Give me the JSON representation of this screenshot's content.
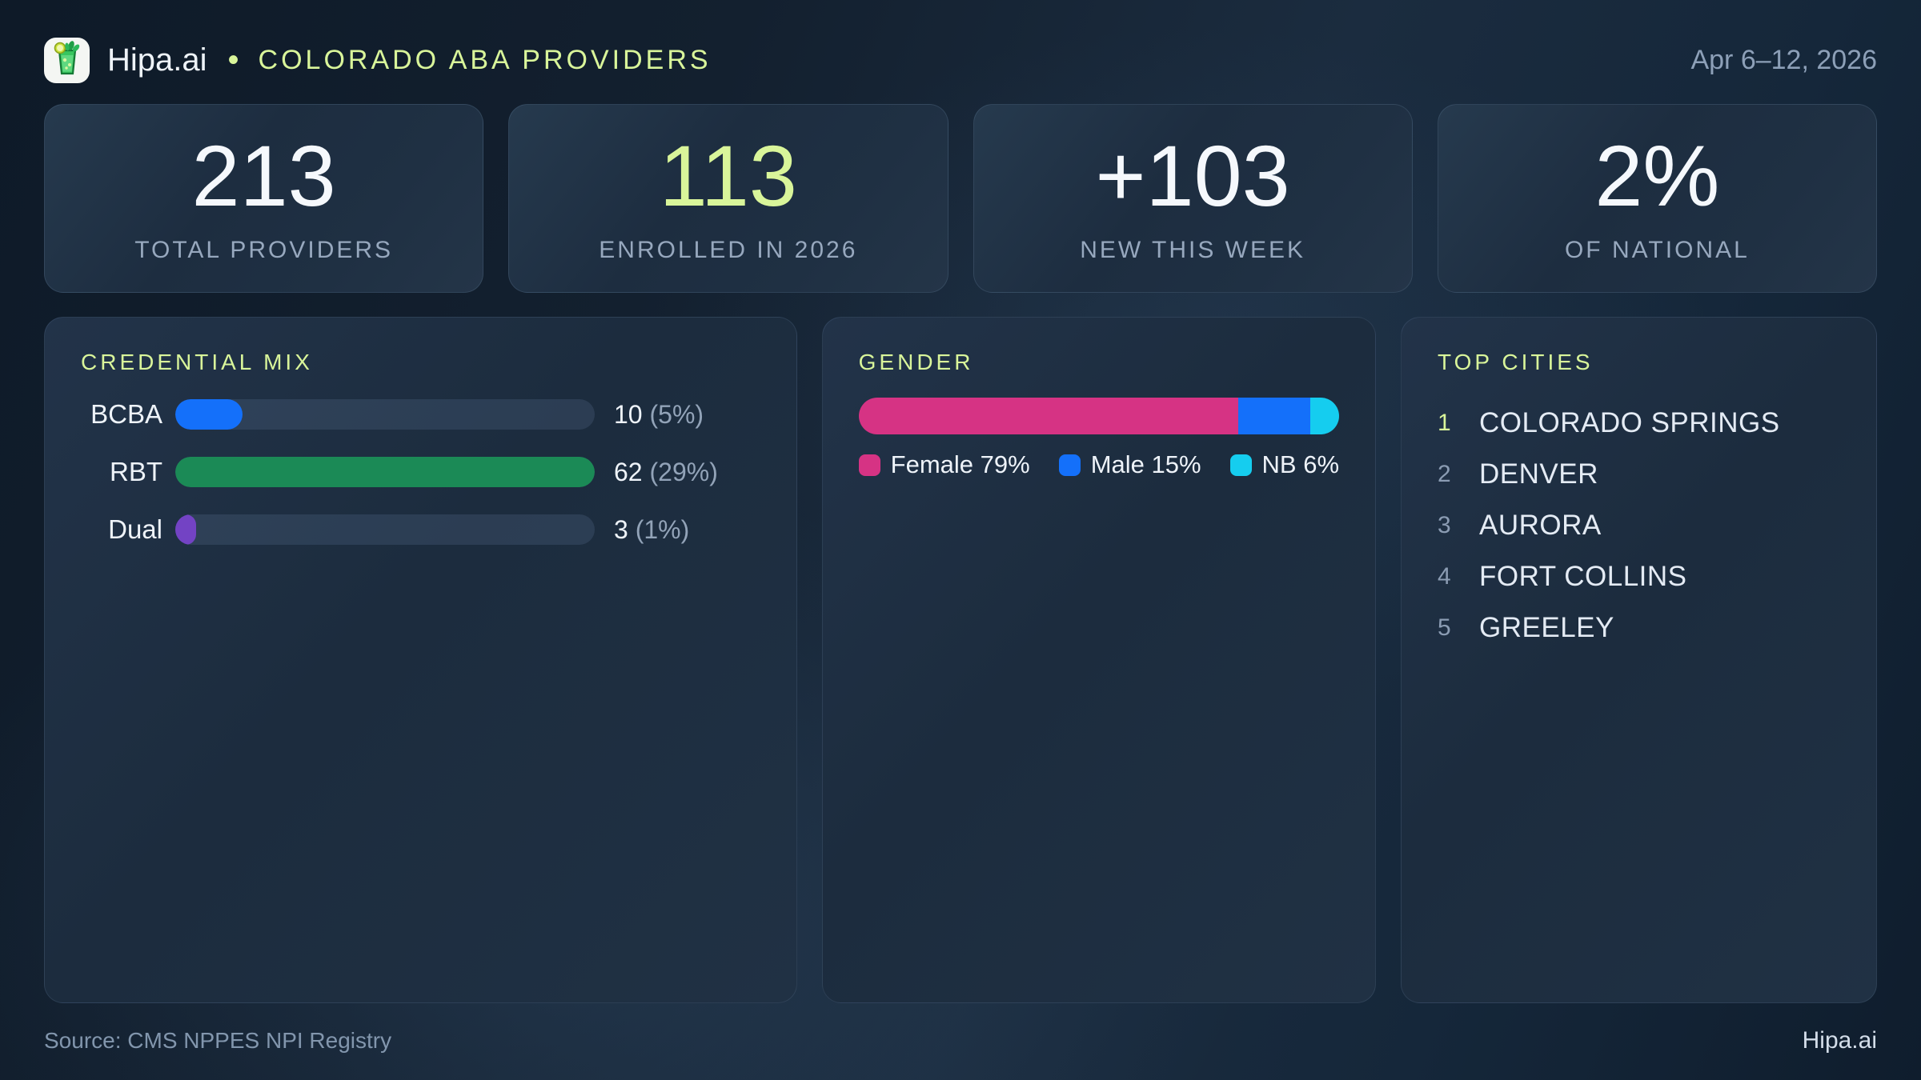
{
  "header": {
    "brand": "Hipa.ai",
    "separator": "•",
    "title": "COLORADO ABA PROVIDERS",
    "date_range": "Apr 6–12, 2026",
    "logo_icon": "mojito-glass-icon"
  },
  "stats": [
    {
      "value": "213",
      "label": "TOTAL PROVIDERS",
      "accent": false
    },
    {
      "value": "113",
      "label": "ENROLLED IN 2026",
      "accent": true
    },
    {
      "value": "+103",
      "label": "NEW THIS WEEK",
      "accent": false
    },
    {
      "value": "2%",
      "label": "OF NATIONAL",
      "accent": false
    }
  ],
  "credential_mix": {
    "title": "CREDENTIAL MIX",
    "rows": [
      {
        "label": "BCBA",
        "count": "10",
        "percent": "(5%)",
        "value": 10,
        "max": 62,
        "fill_pct": 16,
        "color": "#1470fa"
      },
      {
        "label": "RBT",
        "count": "62",
        "percent": "(29%)",
        "value": 62,
        "max": 62,
        "fill_pct": 100,
        "color": "#1b8a56"
      },
      {
        "label": "Dual",
        "count": "3",
        "percent": "(1%)",
        "value": 3,
        "max": 62,
        "fill_pct": 5,
        "color": "#7343c4"
      }
    ]
  },
  "gender": {
    "title": "GENDER",
    "segments": [
      {
        "label": "Female",
        "pct": 79,
        "color": "#d63384",
        "legend": "Female 79%"
      },
      {
        "label": "Male",
        "pct": 15,
        "color": "#1470fa",
        "legend": "Male 15%"
      },
      {
        "label": "NB",
        "pct": 6,
        "color": "#15cdef",
        "legend": "NB 6%"
      }
    ]
  },
  "top_cities": {
    "title": "TOP CITIES",
    "items": [
      {
        "rank": "1",
        "name": "COLORADO SPRINGS",
        "highlight": true
      },
      {
        "rank": "2",
        "name": "DENVER",
        "highlight": false
      },
      {
        "rank": "3",
        "name": "AURORA",
        "highlight": false
      },
      {
        "rank": "4",
        "name": "FORT COLLINS",
        "highlight": false
      },
      {
        "rank": "5",
        "name": "GREELEY",
        "highlight": false
      }
    ]
  },
  "footer": {
    "source": "Source: CMS NPPES NPI Registry",
    "brand": "Hipa.ai"
  },
  "colors": {
    "accent_lime": "#d9f59a",
    "bar_blue": "#1470fa",
    "bar_green": "#1b8a56",
    "bar_purple": "#7343c4",
    "pink": "#d63384",
    "cyan": "#15cdef"
  },
  "chart_data": [
    {
      "type": "bar",
      "orientation": "horizontal",
      "title": "CREDENTIAL MIX",
      "categories": [
        "BCBA",
        "RBT",
        "Dual"
      ],
      "values": [
        10,
        62,
        3
      ],
      "percent_labels": [
        "5%",
        "29%",
        "1%"
      ],
      "xlim": [
        0,
        62
      ],
      "grid": false,
      "legend_position": "none"
    },
    {
      "type": "bar",
      "subtype": "stacked-100pct",
      "title": "GENDER",
      "categories": [
        "Female",
        "Male",
        "NB"
      ],
      "values": [
        79,
        15,
        6
      ],
      "unit": "%",
      "legend_position": "bottom"
    },
    {
      "type": "table",
      "title": "TOP CITIES",
      "categories": [
        "1",
        "2",
        "3",
        "4",
        "5"
      ],
      "values": [
        "COLORADO SPRINGS",
        "DENVER",
        "AURORA",
        "FORT COLLINS",
        "GREELEY"
      ]
    }
  ]
}
